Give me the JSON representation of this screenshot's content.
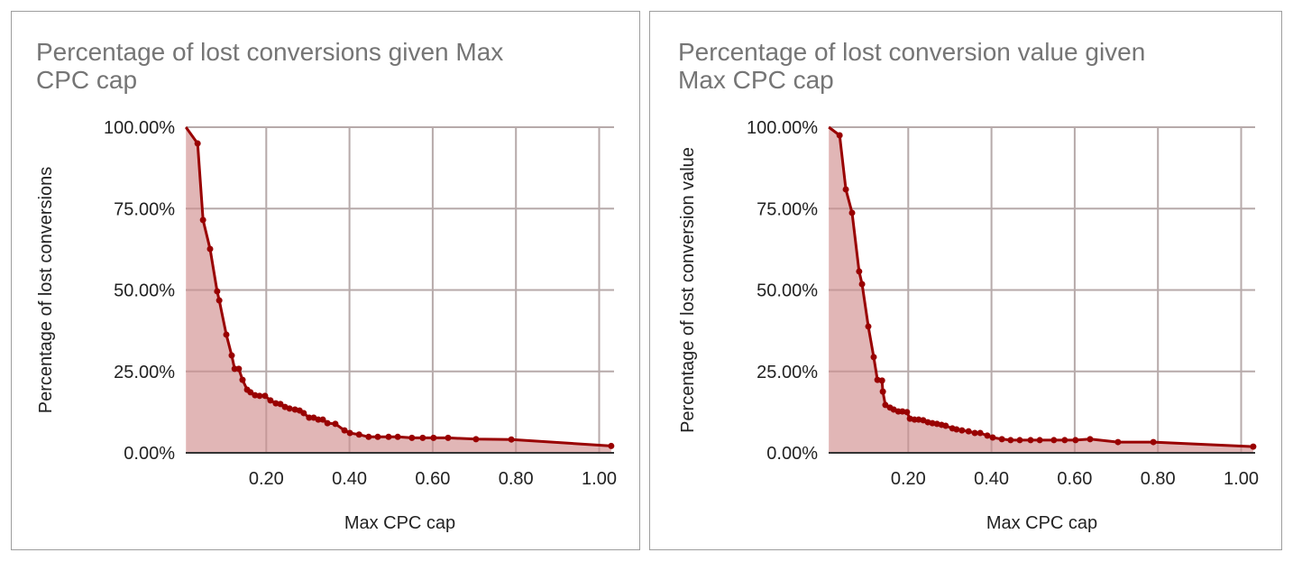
{
  "colors": {
    "line": "#990000",
    "fill": "#dfb2b2",
    "grid": "#cccccc",
    "axis": "#333333",
    "title": "#757575",
    "border": "#9e9e9e"
  },
  "charts": [
    {
      "title": "Percentage of lost conversions given Max CPC cap",
      "title_lines": [
        "Percentage of lost conversions given Max",
        "CPC cap"
      ],
      "xlabel": "Max CPC cap",
      "ylabel": "Percentage of lost conversions",
      "xticks": [
        "0.20",
        "0.40",
        "0.60",
        "0.80",
        "1.00"
      ],
      "yticks": [
        "0.00%",
        "25.00%",
        "50.00%",
        "75.00%",
        "100.00%"
      ]
    },
    {
      "title": "Percentage of lost conversion value given Max CPC cap",
      "title_lines": [
        "Percentage of lost conversion value given",
        "Max CPC cap"
      ],
      "xlabel": "Max CPC cap",
      "ylabel": "Percentage of lost conversion value",
      "xticks": [
        "0.20",
        "0.40",
        "0.60",
        "0.80",
        "1.00"
      ],
      "yticks": [
        "0.00%",
        "25.00%",
        "50.00%",
        "75.00%",
        "100.00%"
      ]
    }
  ],
  "chart_data": [
    {
      "type": "area",
      "title": "Percentage of lost conversions given Max CPC cap",
      "xlabel": "Max CPC cap",
      "ylabel": "Percentage of lost conversions",
      "xlim": [
        0.007,
        1.035
      ],
      "ylim": [
        0,
        100
      ],
      "xticks": [
        0.2,
        0.4,
        0.6,
        0.8,
        1.0
      ],
      "yticks": [
        0,
        25,
        50,
        75,
        100
      ],
      "grid": true,
      "legend": "none",
      "x": [
        0.007,
        0.035,
        0.048,
        0.065,
        0.082,
        0.087,
        0.104,
        0.117,
        0.124,
        0.134,
        0.143,
        0.154,
        0.162,
        0.173,
        0.184,
        0.197,
        0.21,
        0.223,
        0.234,
        0.245,
        0.256,
        0.269,
        0.28,
        0.29,
        0.303,
        0.314,
        0.325,
        0.336,
        0.347,
        0.366,
        0.388,
        0.401,
        0.423,
        0.446,
        0.468,
        0.494,
        0.516,
        0.55,
        0.576,
        0.602,
        0.637,
        0.704,
        0.789,
        1.029
      ],
      "values": [
        100.0,
        95.0,
        71.5,
        62.6,
        49.6,
        46.8,
        36.3,
        29.9,
        25.8,
        25.8,
        22.4,
        19.4,
        18.6,
        17.7,
        17.5,
        17.5,
        16.1,
        15.2,
        15.0,
        14.1,
        13.6,
        13.3,
        13.0,
        12.2,
        10.8,
        10.8,
        10.2,
        10.2,
        9.1,
        8.9,
        6.9,
        6.1,
        5.6,
        4.9,
        4.9,
        4.9,
        4.9,
        4.6,
        4.6,
        4.6,
        4.6,
        4.2,
        4.1,
        2.1
      ]
    },
    {
      "type": "area",
      "title": "Percentage of lost conversion value given Max CPC cap",
      "xlabel": "Max CPC cap",
      "ylabel": "Percentage of lost conversion value",
      "xlim": [
        0.009,
        1.035
      ],
      "ylim": [
        0,
        100
      ],
      "xticks": [
        0.2,
        0.4,
        0.6,
        0.8,
        1.0
      ],
      "yticks": [
        0,
        25,
        50,
        75,
        100
      ],
      "grid": true,
      "legend": "none",
      "x": [
        0.009,
        0.035,
        0.05,
        0.065,
        0.082,
        0.089,
        0.104,
        0.117,
        0.126,
        0.137,
        0.139,
        0.145,
        0.156,
        0.165,
        0.176,
        0.186,
        0.197,
        0.204,
        0.215,
        0.225,
        0.236,
        0.247,
        0.258,
        0.269,
        0.28,
        0.29,
        0.306,
        0.316,
        0.329,
        0.345,
        0.36,
        0.373,
        0.39,
        0.403,
        0.425,
        0.446,
        0.468,
        0.494,
        0.516,
        0.55,
        0.576,
        0.602,
        0.637,
        0.704,
        0.789,
        1.029
      ],
      "values": [
        100.0,
        97.5,
        80.9,
        73.7,
        55.7,
        51.8,
        38.8,
        29.4,
        22.4,
        22.2,
        18.8,
        14.7,
        13.9,
        13.3,
        12.7,
        12.7,
        12.5,
        10.5,
        10.2,
        10.2,
        10.0,
        9.4,
        9.1,
        8.9,
        8.6,
        8.3,
        7.5,
        7.2,
        6.9,
        6.6,
        6.1,
        6.1,
        5.3,
        4.7,
        4.2,
        3.9,
        3.9,
        3.9,
        3.9,
        3.9,
        3.9,
        3.9,
        4.2,
        3.3,
        3.3,
        1.9
      ]
    }
  ]
}
